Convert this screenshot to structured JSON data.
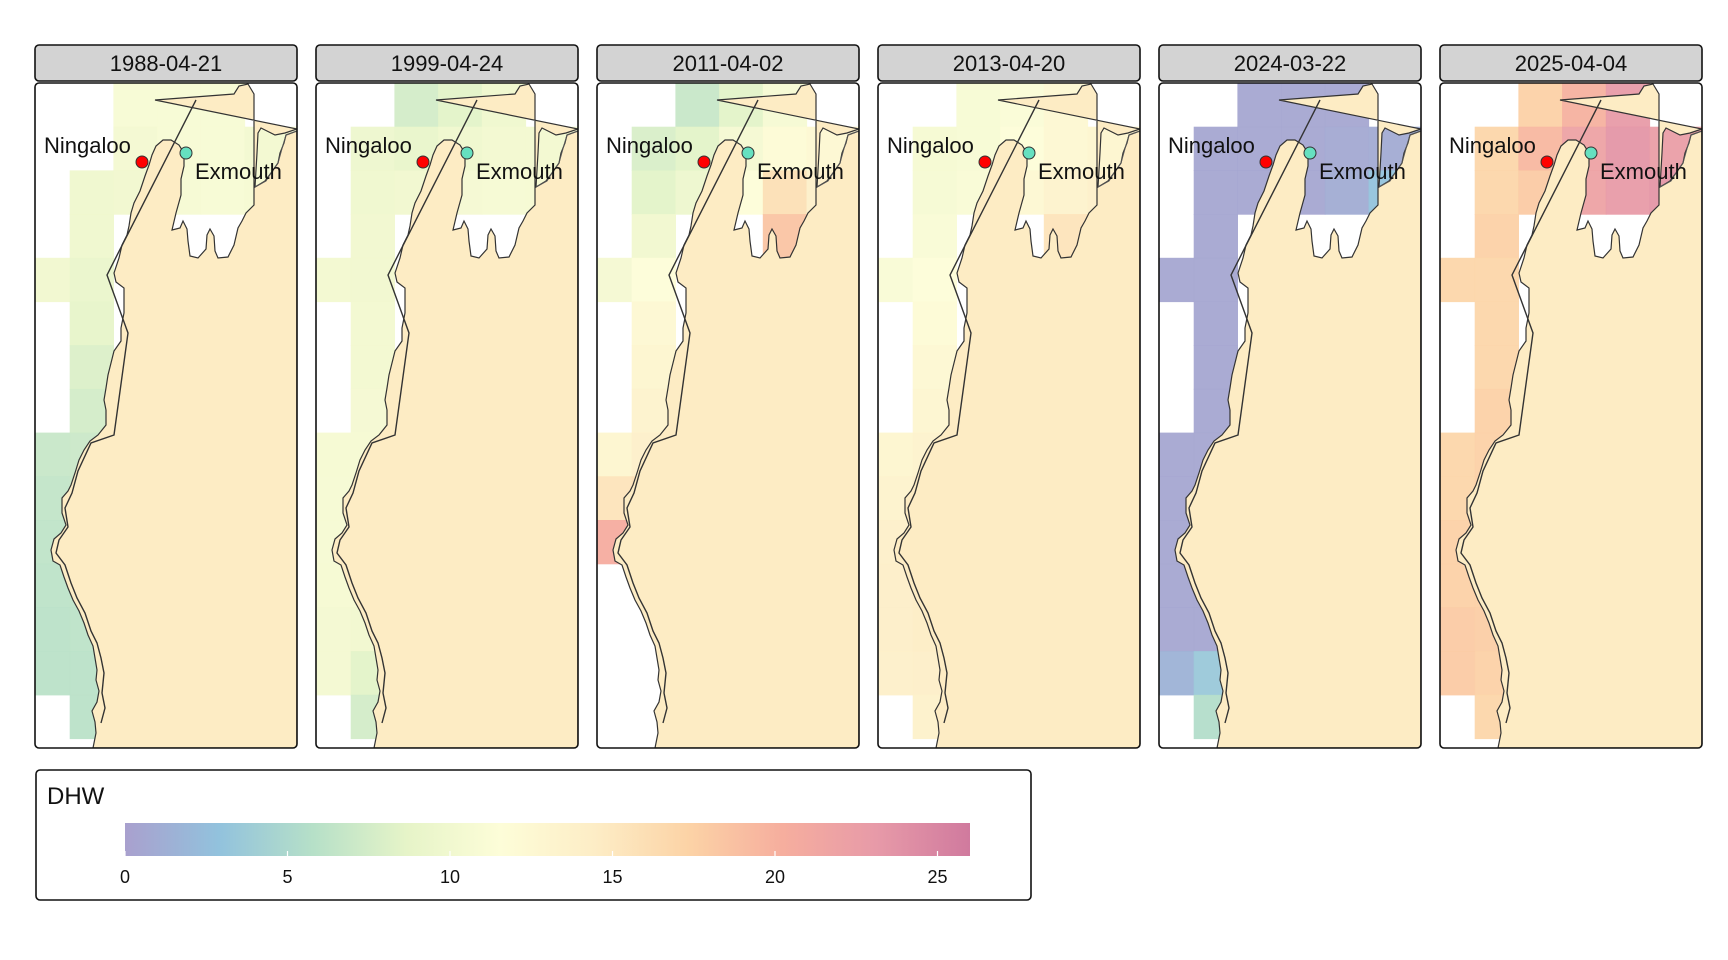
{
  "legend": {
    "title": "DHW",
    "ticks": [
      0,
      5,
      10,
      15,
      20,
      25
    ],
    "min": 0,
    "max": 26,
    "colors": [
      "#A9A0CE",
      "#92C2DD",
      "#B6E0C8",
      "#E6F4C8",
      "#FDFDD8",
      "#FDEDC6",
      "#FCD3A6",
      "#F6AE9E",
      "#E79AA8",
      "#D07A9E"
    ]
  },
  "places": [
    {
      "name": "Ningaloo",
      "color": "#FF0000"
    },
    {
      "name": "Exmouth",
      "color": "#66E0C0"
    }
  ],
  "panels": [
    {
      "date": "1988-04-21",
      "land_dhw": 14.6,
      "cells": [
        {
          "c": 2,
          "r": 0,
          "v": 10.8
        },
        {
          "c": 3,
          "r": 0,
          "v": 10.8
        },
        {
          "c": 4,
          "r": 0,
          "v": 10.8
        },
        {
          "c": 2,
          "r": 1,
          "v": 10.3
        },
        {
          "c": 3,
          "r": 1,
          "v": 10.8
        },
        {
          "c": 4,
          "r": 1,
          "v": 10.8
        },
        {
          "c": 5,
          "r": 1,
          "v": 10.2
        },
        {
          "c": 6,
          "r": 1,
          "v": 11.0
        },
        {
          "c": 1,
          "r": 2,
          "v": 9.8
        },
        {
          "c": 2,
          "r": 2,
          "v": 10.0
        },
        {
          "c": 3,
          "r": 2,
          "v": 10.6
        },
        {
          "c": 4,
          "r": 2,
          "v": 10.8
        },
        {
          "c": 5,
          "r": 2,
          "v": 10.5
        },
        {
          "c": 6,
          "r": 2,
          "v": 11.0
        },
        {
          "c": 1,
          "r": 3,
          "v": 9.8
        },
        {
          "c": 5,
          "r": 3,
          "v": 9.5
        },
        {
          "c": 0,
          "r": 4,
          "v": 10.0
        },
        {
          "c": 1,
          "r": 4,
          "v": 9.2
        },
        {
          "c": 1,
          "r": 5,
          "v": 8.8
        },
        {
          "c": 1,
          "r": 6,
          "v": 8.0
        },
        {
          "c": 1,
          "r": 7,
          "v": 7.5
        },
        {
          "c": 0,
          "r": 8,
          "v": 6.8
        },
        {
          "c": 1,
          "r": 8,
          "v": 7.0
        },
        {
          "c": 0,
          "r": 9,
          "v": 6.5
        },
        {
          "c": 1,
          "r": 9,
          "v": 6.8
        },
        {
          "c": 0,
          "r": 10,
          "v": 6.3
        },
        {
          "c": 1,
          "r": 10,
          "v": 6.5
        },
        {
          "c": 0,
          "r": 11,
          "v": 6.2
        },
        {
          "c": 1,
          "r": 11,
          "v": 6.3
        },
        {
          "c": 0,
          "r": 12,
          "v": 6.0
        },
        {
          "c": 1,
          "r": 12,
          "v": 6.2
        },
        {
          "c": 0,
          "r": 13,
          "v": 6.0
        },
        {
          "c": 1,
          "r": 13,
          "v": 6.0
        },
        {
          "c": 1,
          "r": 14,
          "v": 6.0
        }
      ]
    },
    {
      "date": "1999-04-24",
      "land_dhw": 14.6,
      "cells": [
        {
          "c": 2,
          "r": 0,
          "v": 7.5
        },
        {
          "c": 3,
          "r": 0,
          "v": 8.5
        },
        {
          "c": 4,
          "r": 0,
          "v": 9.8
        },
        {
          "c": 1,
          "r": 1,
          "v": 9.5
        },
        {
          "c": 2,
          "r": 1,
          "v": 9.0
        },
        {
          "c": 3,
          "r": 1,
          "v": 9.8
        },
        {
          "c": 4,
          "r": 1,
          "v": 10.2
        },
        {
          "c": 5,
          "r": 1,
          "v": 10.2
        },
        {
          "c": 6,
          "r": 1,
          "v": 10.5
        },
        {
          "c": 1,
          "r": 2,
          "v": 9.8
        },
        {
          "c": 2,
          "r": 2,
          "v": 10.0
        },
        {
          "c": 3,
          "r": 2,
          "v": 10.4
        },
        {
          "c": 4,
          "r": 2,
          "v": 10.6
        },
        {
          "c": 5,
          "r": 2,
          "v": 10.5
        },
        {
          "c": 6,
          "r": 2,
          "v": 11.0
        },
        {
          "c": 1,
          "r": 3,
          "v": 10.0
        },
        {
          "c": 5,
          "r": 3,
          "v": 10.0
        },
        {
          "c": 0,
          "r": 4,
          "v": 10.2
        },
        {
          "c": 1,
          "r": 4,
          "v": 10.0
        },
        {
          "c": 1,
          "r": 5,
          "v": 10.2
        },
        {
          "c": 1,
          "r": 6,
          "v": 10.2
        },
        {
          "c": 1,
          "r": 7,
          "v": 10.4
        },
        {
          "c": 0,
          "r": 8,
          "v": 10.5
        },
        {
          "c": 1,
          "r": 8,
          "v": 10.5
        },
        {
          "c": 0,
          "r": 9,
          "v": 10.6
        },
        {
          "c": 1,
          "r": 9,
          "v": 10.6
        },
        {
          "c": 0,
          "r": 10,
          "v": 10.6
        },
        {
          "c": 1,
          "r": 10,
          "v": 10.6
        },
        {
          "c": 0,
          "r": 11,
          "v": 10.5
        },
        {
          "c": 1,
          "r": 11,
          "v": 10.5
        },
        {
          "c": 0,
          "r": 12,
          "v": 10.3
        },
        {
          "c": 1,
          "r": 12,
          "v": 10.0
        },
        {
          "c": 0,
          "r": 13,
          "v": 10.3
        },
        {
          "c": 1,
          "r": 13,
          "v": 8.5
        },
        {
          "c": 1,
          "r": 14,
          "v": 7.5
        }
      ]
    },
    {
      "date": "2011-04-02",
      "land_dhw": 14.6,
      "cells": [
        {
          "c": 2,
          "r": 0,
          "v": 6.8
        },
        {
          "c": 3,
          "r": 0,
          "v": 8.5
        },
        {
          "c": 4,
          "r": 0,
          "v": 10.6
        },
        {
          "c": 1,
          "r": 1,
          "v": 7.8
        },
        {
          "c": 2,
          "r": 1,
          "v": 8.5
        },
        {
          "c": 3,
          "r": 1,
          "v": 10.4
        },
        {
          "c": 4,
          "r": 1,
          "v": 12.0
        },
        {
          "c": 5,
          "r": 1,
          "v": 12.5
        },
        {
          "c": 6,
          "r": 1,
          "v": 13.5
        },
        {
          "c": 1,
          "r": 2,
          "v": 8.5
        },
        {
          "c": 2,
          "r": 2,
          "v": 9.5
        },
        {
          "c": 3,
          "r": 2,
          "v": 11.5
        },
        {
          "c": 4,
          "r": 2,
          "v": 16.0
        },
        {
          "c": 5,
          "r": 2,
          "v": 14.0
        },
        {
          "c": 6,
          "r": 2,
          "v": 14.5
        },
        {
          "c": 1,
          "r": 3,
          "v": 10.0
        },
        {
          "c": 4,
          "r": 3,
          "v": 18.5
        },
        {
          "c": 0,
          "r": 4,
          "v": 10.4
        },
        {
          "c": 1,
          "r": 4,
          "v": 11.5
        },
        {
          "c": 1,
          "r": 5,
          "v": 12.5
        },
        {
          "c": 1,
          "r": 6,
          "v": 13.0
        },
        {
          "c": 1,
          "r": 7,
          "v": 13.5
        },
        {
          "c": 0,
          "r": 8,
          "v": 13.0
        },
        {
          "c": 1,
          "r": 8,
          "v": 14.0
        },
        {
          "c": 0,
          "r": 9,
          "v": 15.5
        },
        {
          "c": 1,
          "r": 9,
          "v": 16.0
        },
        {
          "c": 0,
          "r": 10,
          "v": 20.5
        },
        {
          "c": 1,
          "r": 10,
          "v": 19.5
        }
      ]
    },
    {
      "date": "2013-04-20",
      "land_dhw": 14.6,
      "cells": [
        {
          "c": 2,
          "r": 0,
          "v": 10.8
        },
        {
          "c": 3,
          "r": 0,
          "v": 11.2
        },
        {
          "c": 4,
          "r": 0,
          "v": 12.5
        },
        {
          "c": 1,
          "r": 1,
          "v": 10.5
        },
        {
          "c": 2,
          "r": 1,
          "v": 10.8
        },
        {
          "c": 3,
          "r": 1,
          "v": 11.5
        },
        {
          "c": 4,
          "r": 1,
          "v": 12.5
        },
        {
          "c": 5,
          "r": 1,
          "v": 13.0
        },
        {
          "c": 6,
          "r": 1,
          "v": 13.5
        },
        {
          "c": 1,
          "r": 2,
          "v": 10.6
        },
        {
          "c": 2,
          "r": 2,
          "v": 11.0
        },
        {
          "c": 3,
          "r": 2,
          "v": 12.5
        },
        {
          "c": 4,
          "r": 2,
          "v": 13.5
        },
        {
          "c": 5,
          "r": 2,
          "v": 14.0
        },
        {
          "c": 6,
          "r": 2,
          "v": 14.5
        },
        {
          "c": 1,
          "r": 3,
          "v": 11.0
        },
        {
          "c": 4,
          "r": 3,
          "v": 15.5
        },
        {
          "c": 0,
          "r": 4,
          "v": 11.0
        },
        {
          "c": 1,
          "r": 4,
          "v": 11.5
        },
        {
          "c": 1,
          "r": 5,
          "v": 12.0
        },
        {
          "c": 1,
          "r": 6,
          "v": 12.5
        },
        {
          "c": 1,
          "r": 7,
          "v": 12.8
        },
        {
          "c": 0,
          "r": 8,
          "v": 13.0
        },
        {
          "c": 1,
          "r": 8,
          "v": 13.5
        },
        {
          "c": 0,
          "r": 9,
          "v": 13.5
        },
        {
          "c": 1,
          "r": 9,
          "v": 14.0
        },
        {
          "c": 0,
          "r": 10,
          "v": 14.0
        },
        {
          "c": 1,
          "r": 10,
          "v": 14.2
        },
        {
          "c": 0,
          "r": 11,
          "v": 14.2
        },
        {
          "c": 1,
          "r": 11,
          "v": 14.5
        },
        {
          "c": 0,
          "r": 12,
          "v": 14.2
        },
        {
          "c": 1,
          "r": 12,
          "v": 14.5
        },
        {
          "c": 0,
          "r": 13,
          "v": 14.0
        },
        {
          "c": 1,
          "r": 13,
          "v": 14.2
        },
        {
          "c": 1,
          "r": 14,
          "v": 13.8
        }
      ]
    },
    {
      "date": "2024-03-22",
      "land_dhw": 14.6,
      "cells": [
        {
          "c": 2,
          "r": 0,
          "v": 0.5
        },
        {
          "c": 3,
          "r": 0,
          "v": 0.5
        },
        {
          "c": 4,
          "r": 0,
          "v": 0.5
        },
        {
          "c": 1,
          "r": 1,
          "v": 0.5
        },
        {
          "c": 2,
          "r": 1,
          "v": 0.5
        },
        {
          "c": 3,
          "r": 1,
          "v": 0.5
        },
        {
          "c": 4,
          "r": 1,
          "v": 0.8
        },
        {
          "c": 5,
          "r": 1,
          "v": 0.9
        },
        {
          "c": 6,
          "r": 1,
          "v": 1.2
        },
        {
          "c": 1,
          "r": 2,
          "v": 0.5
        },
        {
          "c": 2,
          "r": 2,
          "v": 0.5
        },
        {
          "c": 3,
          "r": 2,
          "v": 0.5
        },
        {
          "c": 4,
          "r": 2,
          "v": 1.0
        },
        {
          "c": 5,
          "r": 2,
          "v": 3.0
        },
        {
          "c": 6,
          "r": 2,
          "v": 2.5
        },
        {
          "c": 1,
          "r": 3,
          "v": 0.5
        },
        {
          "c": 5,
          "r": 3,
          "v": 5.5
        },
        {
          "c": 0,
          "r": 4,
          "v": 0.5
        },
        {
          "c": 1,
          "r": 4,
          "v": 0.5
        },
        {
          "c": 1,
          "r": 5,
          "v": 0.5
        },
        {
          "c": 1,
          "r": 6,
          "v": 0.5
        },
        {
          "c": 1,
          "r": 7,
          "v": 0.5
        },
        {
          "c": 0,
          "r": 8,
          "v": 0.5
        },
        {
          "c": 1,
          "r": 8,
          "v": 0.5
        },
        {
          "c": 0,
          "r": 9,
          "v": 0.5
        },
        {
          "c": 1,
          "r": 9,
          "v": 0.5
        },
        {
          "c": 0,
          "r": 10,
          "v": 0.5
        },
        {
          "c": 1,
          "r": 10,
          "v": 0.5
        },
        {
          "c": 0,
          "r": 11,
          "v": 0.5
        },
        {
          "c": 1,
          "r": 11,
          "v": 0.5
        },
        {
          "c": 0,
          "r": 12,
          "v": 0.5
        },
        {
          "c": 1,
          "r": 12,
          "v": 0.5
        },
        {
          "c": 0,
          "r": 13,
          "v": 1.5
        },
        {
          "c": 1,
          "r": 13,
          "v": 3.5
        },
        {
          "c": 1,
          "r": 14,
          "v": 5.5
        }
      ]
    },
    {
      "date": "2025-04-04",
      "land_dhw": 14.6,
      "cells": [
        {
          "c": 2,
          "r": 0,
          "v": 17.5
        },
        {
          "c": 3,
          "r": 0,
          "v": 20.0
        },
        {
          "c": 4,
          "r": 0,
          "v": 23.0
        },
        {
          "c": 1,
          "r": 1,
          "v": 17.0
        },
        {
          "c": 2,
          "r": 1,
          "v": 19.5
        },
        {
          "c": 3,
          "r": 1,
          "v": 22.0
        },
        {
          "c": 4,
          "r": 1,
          "v": 23.5
        },
        {
          "c": 5,
          "r": 1,
          "v": 22.5
        },
        {
          "c": 6,
          "r": 1,
          "v": 22.0
        },
        {
          "c": 1,
          "r": 2,
          "v": 17.0
        },
        {
          "c": 2,
          "r": 2,
          "v": 18.0
        },
        {
          "c": 3,
          "r": 2,
          "v": 22.0
        },
        {
          "c": 4,
          "r": 2,
          "v": 23.0
        },
        {
          "c": 5,
          "r": 2,
          "v": 23.5
        },
        {
          "c": 6,
          "r": 2,
          "v": 23.0
        },
        {
          "c": 1,
          "r": 3,
          "v": 17.5
        },
        {
          "c": 5,
          "r": 3,
          "v": 25.5
        },
        {
          "c": 0,
          "r": 4,
          "v": 17.0
        },
        {
          "c": 1,
          "r": 4,
          "v": 17.0
        },
        {
          "c": 1,
          "r": 5,
          "v": 17.0
        },
        {
          "c": 1,
          "r": 6,
          "v": 17.0
        },
        {
          "c": 1,
          "r": 7,
          "v": 17.5
        },
        {
          "c": 0,
          "r": 8,
          "v": 17.0
        },
        {
          "c": 1,
          "r": 8,
          "v": 17.5
        },
        {
          "c": 0,
          "r": 9,
          "v": 17.0
        },
        {
          "c": 1,
          "r": 9,
          "v": 17.5
        },
        {
          "c": 0,
          "r": 10,
          "v": 17.5
        },
        {
          "c": 1,
          "r": 10,
          "v": 17.5
        },
        {
          "c": 0,
          "r": 11,
          "v": 17.5
        },
        {
          "c": 1,
          "r": 11,
          "v": 17.5
        },
        {
          "c": 0,
          "r": 12,
          "v": 18.0
        },
        {
          "c": 1,
          "r": 12,
          "v": 17.8
        },
        {
          "c": 0,
          "r": 13,
          "v": 18.0
        },
        {
          "c": 1,
          "r": 13,
          "v": 17.5
        },
        {
          "c": 1,
          "r": 14,
          "v": 17.0
        }
      ]
    }
  ]
}
